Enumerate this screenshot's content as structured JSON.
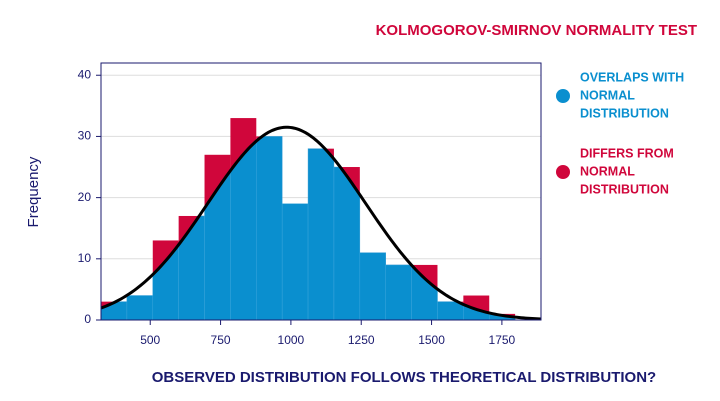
{
  "chart_data": {
    "type": "histogram",
    "title": "KOLMOGOROV-SMIRNOV NORMALITY TEST",
    "x_label": "OBSERVED DISTRIBUTION FOLLOWS THEORETICAL DISTRIBUTION?",
    "y_label": "Frequency",
    "bins": [
      325,
      417,
      509,
      601,
      693,
      785,
      877,
      969,
      1061,
      1153,
      1245,
      1337,
      1429,
      1521,
      1613,
      1705,
      1797,
      1889
    ],
    "values": [
      3,
      4,
      13,
      17,
      27,
      33,
      30,
      19,
      28,
      25,
      11,
      9,
      9,
      3,
      4,
      1,
      0
    ],
    "normal_curve": {
      "mean": 985,
      "sd": 280,
      "peak": 31.5
    },
    "series": [
      {
        "name": [
          "OVERLAPS WITH",
          "NORMAL",
          "DISTRIBUTION"
        ],
        "color": "#0a8fcf"
      },
      {
        "name": [
          "DIFFERS FROM",
          "NORMAL",
          "DISTRIBUTION"
        ],
        "color": "#d0063b"
      }
    ],
    "xlim": [
      325,
      1889
    ],
    "ylim": [
      0,
      42
    ],
    "xticks": [
      500,
      750,
      1000,
      1250,
      1500,
      1750
    ],
    "yticks": [
      0,
      10,
      20,
      30,
      40
    ],
    "grid": true
  }
}
